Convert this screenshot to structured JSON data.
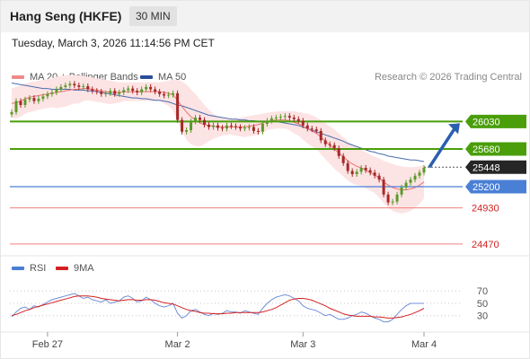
{
  "header": {
    "title": "Hang Seng (HKFE)",
    "timeframe": "30 MIN"
  },
  "date_line": "Tuesday, March 3, 2026 11:14:56 PM CET",
  "legend": {
    "bollinger": "MA 20 + Bollinger Bands",
    "ma50": "MA 50",
    "rsi": "RSI",
    "ma9": "9MA"
  },
  "copyright": "Research © 2026 Trading Central",
  "colors": {
    "green": "#4a9e0a",
    "blue": "#4a7fd6",
    "red": "#f08080",
    "candle_up": "#5a9a2a",
    "candle_down": "#a52828",
    "ma20": "#f07070",
    "ma50": "#4a6cb0",
    "band": "#fde4e4",
    "rsi": "#6f8fd8",
    "rsi_ma": "#d42020",
    "arrow": "#2a5fb0",
    "dark": "#262626"
  },
  "chart_data": [
    {
      "type": "candlestick",
      "x_labels": [
        "Feb 27",
        "Mar 2",
        "Mar 3",
        "Mar 4"
      ],
      "ylim": [
        24400,
        26480
      ],
      "levels": [
        {
          "value": 26030,
          "label": "26030",
          "color": "green"
        },
        {
          "value": 25680,
          "label": "25680",
          "color": "green"
        },
        {
          "value": 25448,
          "label": "25448",
          "color": "dark"
        },
        {
          "value": 25200,
          "label": "25200",
          "color": "blue"
        },
        {
          "value": 24930,
          "label": "24930",
          "color": "red"
        },
        {
          "value": 24470,
          "label": "24470",
          "color": "red"
        }
      ],
      "close": [
        26150,
        26290,
        26240,
        26310,
        26330,
        26290,
        26320,
        26350,
        26380,
        26400,
        26440,
        26470,
        26490,
        26510,
        26490,
        26470,
        26480,
        26440,
        26420,
        26410,
        26380,
        26390,
        26420,
        26380,
        26400,
        26430,
        26450,
        26420,
        26400,
        26440,
        26470,
        26440,
        26410,
        26380,
        26360,
        26370,
        26390,
        26050,
        25900,
        25920,
        26030,
        26080,
        26050,
        25990,
        25960,
        25980,
        25950,
        25940,
        25980,
        25970,
        25960,
        25940,
        25950,
        25960,
        25910,
        25900,
        26000,
        26040,
        26070,
        26080,
        26090,
        26100,
        26080,
        26060,
        26040,
        25980,
        25940,
        25930,
        25910,
        25790,
        25740,
        25730,
        25690,
        25590,
        25500,
        25400,
        25360,
        25390,
        25440,
        25410,
        25380,
        25340,
        25290,
        25100,
        25000,
        25010,
        25100,
        25190,
        25250,
        25290,
        25340,
        25380,
        25440
      ],
      "ma20": [
        26260,
        26270,
        26290,
        26320,
        26340,
        26350,
        26360,
        26370,
        26380,
        26390,
        26400,
        26410,
        26420,
        26430,
        26440,
        26440,
        26450,
        26450,
        26440,
        26430,
        26420,
        26410,
        26400,
        26400,
        26400,
        26410,
        26410,
        26410,
        26410,
        26410,
        26410,
        26410,
        26410,
        26410,
        26400,
        26390,
        26370,
        26300,
        26220,
        26150,
        26090,
        26050,
        26010,
        25990,
        25980,
        25970,
        25960,
        25960,
        25960,
        25960,
        25960,
        25960,
        25960,
        25970,
        25980,
        25990,
        26010,
        26030,
        26040,
        26050,
        26050,
        26050,
        26040,
        26020,
        26000,
        25970,
        25940,
        25910,
        25880,
        25830,
        25780,
        25730,
        25680,
        25630,
        25580,
        25530,
        25490,
        25460,
        25440,
        25410,
        25380,
        25350,
        25310,
        25260,
        25220,
        25190,
        25170,
        25160,
        25160,
        25170,
        25190,
        25220,
        25260
      ],
      "ma50": [
        26520,
        26510,
        26500,
        26490,
        26480,
        26470,
        26460,
        26450,
        26450,
        26440,
        26440,
        26440,
        26440,
        26440,
        26430,
        26430,
        26430,
        26420,
        26420,
        26410,
        26400,
        26390,
        26380,
        26370,
        26360,
        26350,
        26340,
        26330,
        26330,
        26320,
        26320,
        26310,
        26300,
        26300,
        26290,
        26280,
        26260,
        26240,
        26230,
        26210,
        26190,
        26170,
        26150,
        26130,
        26110,
        26100,
        26090,
        26080,
        26070,
        26060,
        26060,
        26050,
        26050,
        26040,
        26040,
        26030,
        26030,
        26030,
        26030,
        26030,
        26020,
        26010,
        26000,
        25990,
        25980,
        25960,
        25940,
        25920,
        25900,
        25880,
        25860,
        25840,
        25820,
        25800,
        25780,
        25750,
        25730,
        25710,
        25690,
        25670,
        25650,
        25640,
        25620,
        25610,
        25590,
        25580,
        25570,
        25560,
        25550,
        25540,
        25540,
        25530,
        25520
      ],
      "band_upper": [
        26450,
        26470,
        26490,
        26510,
        26530,
        26540,
        26550,
        26560,
        26570,
        26580,
        26600,
        26610,
        26620,
        26620,
        26620,
        26620,
        26610,
        26600,
        26590,
        26580,
        26570,
        26560,
        26550,
        26540,
        26530,
        26530,
        26530,
        26530,
        26530,
        26530,
        26530,
        26530,
        26530,
        26530,
        26540,
        26550,
        26570,
        26560,
        26540,
        26500,
        26440,
        26380,
        26310,
        26240,
        26180,
        26130,
        26090,
        26070,
        26060,
        26060,
        26070,
        26080,
        26090,
        26100,
        26110,
        26120,
        26130,
        26140,
        26150,
        26160,
        26160,
        26160,
        26160,
        26160,
        26150,
        26140,
        26130,
        26110,
        26080,
        26050,
        26010,
        25970,
        25930,
        25880,
        25830,
        25780,
        25740,
        25700,
        25670,
        25640,
        25610,
        25580,
        25560,
        25530,
        25510,
        25490,
        25470,
        25460,
        25450,
        25450,
        25450,
        25460,
        25470
      ],
      "band_lower": [
        26080,
        26070,
        26090,
        26130,
        26150,
        26160,
        26180,
        26190,
        26200,
        26210,
        26200,
        26210,
        26220,
        26240,
        26260,
        26260,
        26290,
        26300,
        26290,
        26280,
        26270,
        26260,
        26250,
        26260,
        26270,
        26290,
        26290,
        26290,
        26290,
        26290,
        26290,
        26290,
        26290,
        26290,
        26260,
        26230,
        26170,
        26040,
        25900,
        25800,
        25740,
        25720,
        25710,
        25740,
        25780,
        25810,
        25830,
        25850,
        25860,
        25860,
        25850,
        25840,
        25830,
        25840,
        25850,
        25860,
        25890,
        25920,
        25930,
        25940,
        25940,
        25940,
        25920,
        25880,
        25850,
        25800,
        25750,
        25710,
        25680,
        25610,
        25550,
        25490,
        25430,
        25380,
        25330,
        25280,
        25240,
        25220,
        25210,
        25180,
        25150,
        25120,
        25060,
        24990,
        24930,
        24890,
        24870,
        24860,
        24870,
        24890,
        24930,
        24980,
        25050
      ]
    },
    {
      "type": "line",
      "name": "RSI",
      "y_ticks": [
        70,
        50,
        30
      ],
      "ylim": [
        15,
        82
      ],
      "rsi": [
        28,
        36,
        42,
        44,
        40,
        46,
        44,
        48,
        52,
        56,
        58,
        60,
        62,
        64,
        66,
        62,
        58,
        60,
        56,
        54,
        52,
        56,
        50,
        52,
        54,
        60,
        62,
        58,
        52,
        54,
        60,
        56,
        50,
        46,
        44,
        46,
        50,
        34,
        26,
        30,
        38,
        40,
        36,
        32,
        30,
        34,
        32,
        34,
        38,
        36,
        36,
        34,
        38,
        36,
        34,
        32,
        42,
        50,
        56,
        60,
        62,
        64,
        62,
        58,
        54,
        46,
        42,
        40,
        38,
        34,
        30,
        32,
        28,
        24,
        24,
        26,
        30,
        32,
        36,
        34,
        30,
        26,
        24,
        20,
        20,
        24,
        32,
        40,
        46,
        50,
        50,
        50,
        50
      ],
      "ma9": [
        30,
        32,
        35,
        38,
        40,
        43,
        45,
        47,
        49,
        51,
        53,
        55,
        57,
        59,
        61,
        62,
        62,
        62,
        61,
        60,
        58,
        57,
        56,
        55,
        54,
        55,
        56,
        56,
        55,
        55,
        56,
        56,
        55,
        53,
        51,
        50,
        49,
        46,
        43,
        40,
        38,
        37,
        35,
        34,
        34,
        33,
        33,
        33,
        34,
        34,
        35,
        35,
        35,
        35,
        35,
        35,
        36,
        38,
        40,
        43,
        47,
        51,
        55,
        57,
        58,
        58,
        57,
        55,
        52,
        49,
        46,
        42,
        39,
        36,
        33,
        31,
        30,
        29,
        29,
        29,
        29,
        28,
        28,
        27,
        26,
        26,
        27,
        28,
        30,
        32,
        35,
        38,
        42
      ]
    }
  ]
}
